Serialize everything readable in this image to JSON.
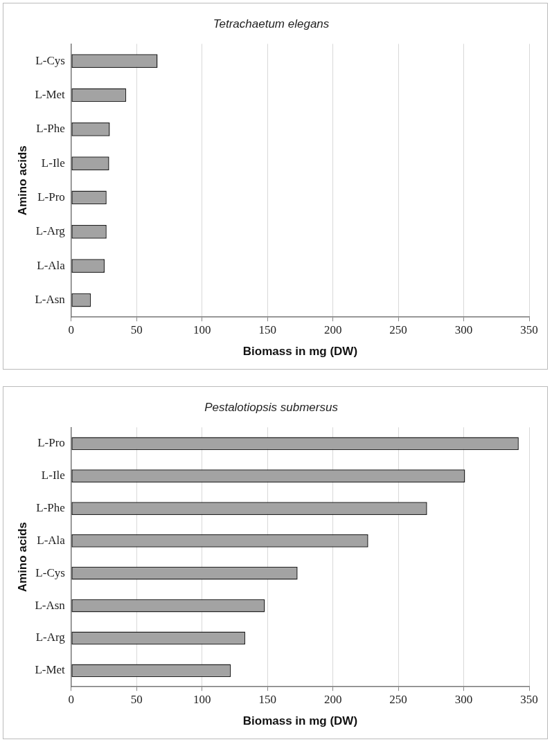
{
  "chart_data": [
    {
      "type": "bar",
      "orientation": "horizontal",
      "title": "Tetrachaetum elegans",
      "xlabel": "Biomass in mg (DW)",
      "ylabel": "Amino acids",
      "categories": [
        "L-Cys",
        "L-Met",
        "L-Phe",
        "L-Ile",
        "L-Pro",
        "L-Arg",
        "L-Ala",
        "L-Asn"
      ],
      "values": [
        66,
        42,
        29.5,
        29,
        27,
        27,
        25.5,
        15
      ],
      "color": "#a3a3a3",
      "xlim": [
        0,
        350
      ],
      "xticks": [
        0,
        50,
        100,
        150,
        200,
        250,
        300,
        350
      ],
      "grid": "x",
      "legend": false
    },
    {
      "type": "bar",
      "orientation": "horizontal",
      "title": "Pestalotiopsis submersus",
      "xlabel": "Biomass in mg (DW)",
      "ylabel": "Amino acids",
      "categories": [
        "L-Pro",
        "L-Ile",
        "L-Phe",
        "L-Ala",
        "L-Cys",
        "L-Asn",
        "L-Arg",
        "L-Met"
      ],
      "values": [
        342,
        301,
        272,
        227,
        173,
        148,
        133,
        122
      ],
      "color": "#a3a3a3",
      "xlim": [
        0,
        350
      ],
      "xticks": [
        0,
        50,
        100,
        150,
        200,
        250,
        300,
        350
      ],
      "grid": "x",
      "legend": false
    }
  ]
}
